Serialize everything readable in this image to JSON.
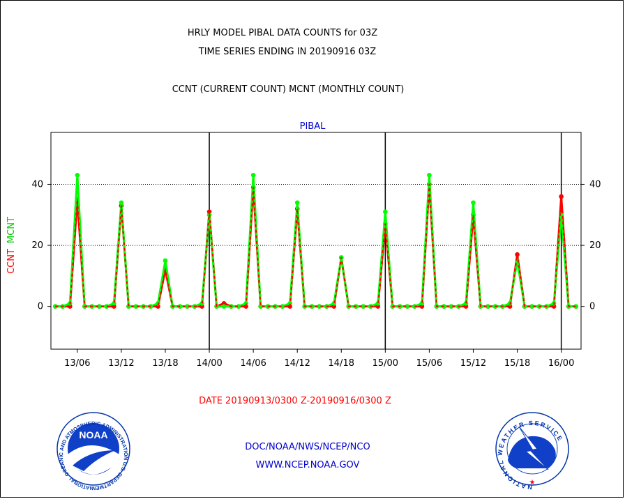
{
  "header": {
    "title_line1": "HRLY MODEL PIBAL DATA COUNTS for 03Z",
    "title_line2": "TIME SERIES ENDING IN 20190916 03Z",
    "subtitle": "CCNT (CURRENT COUNT) MCNT (MONTHLY COUNT)"
  },
  "footer": {
    "date_range": "DATE 20190913/0300 Z-20190916/0300 Z",
    "org": "DOC/NOAA/NWS/NCEP/NCO",
    "url": "WWW.NCEP.NOAA.GOV"
  },
  "logos": {
    "left_label": "NOAA",
    "left_ring_text": "NATIONAL OCEANIC AND ATMOSPHERIC ADMINISTRATION U.S. DEPARTMENT OF COMMERCE",
    "right_ring_text": "NATIONAL WEATHER SERVICE"
  },
  "colors": {
    "ccnt": "#ff0000",
    "mcnt": "#00ff00",
    "panel_title": "#0000cc",
    "footer_text": "#0000cc",
    "date_text": "#ff0000"
  },
  "chart_data": {
    "type": "line",
    "panel_title": "PIBAL",
    "ylabel_parts": [
      "CCNT",
      "MCNT"
    ],
    "ylim": [
      -14,
      57
    ],
    "yticks": [
      0,
      20,
      40
    ],
    "grid_y": [
      20,
      40
    ],
    "x_unit": "hours since 20190913/0000 Z",
    "xlim": [
      -0.6,
      71.7
    ],
    "xticks": [
      {
        "x": 3,
        "label": "13/06"
      },
      {
        "x": 9,
        "label": "13/12"
      },
      {
        "x": 15,
        "label": "13/18"
      },
      {
        "x": 21,
        "label": "14/00"
      },
      {
        "x": 27,
        "label": "14/06"
      },
      {
        "x": 33,
        "label": "14/12"
      },
      {
        "x": 39,
        "label": "14/18"
      },
      {
        "x": 45,
        "label": "15/00"
      },
      {
        "x": 51,
        "label": "15/06"
      },
      {
        "x": 57,
        "label": "15/12"
      },
      {
        "x": 63,
        "label": "15/18"
      },
      {
        "x": 69,
        "label": "16/00"
      }
    ],
    "day_boundaries": [
      21,
      45,
      69
    ],
    "x": [
      0,
      1,
      2,
      3,
      4,
      5,
      6,
      7,
      8,
      9,
      10,
      11,
      12,
      13,
      14,
      15,
      16,
      17,
      18,
      19,
      20,
      21,
      22,
      23,
      24,
      25,
      26,
      27,
      28,
      29,
      30,
      31,
      32,
      33,
      34,
      35,
      36,
      37,
      38,
      39,
      40,
      41,
      42,
      43,
      44,
      45,
      46,
      47,
      48,
      49,
      50,
      51,
      52,
      53,
      54,
      55,
      56,
      57,
      58,
      59,
      60,
      61,
      62,
      63,
      64,
      65,
      66,
      67,
      68,
      69,
      70,
      71
    ],
    "series": [
      {
        "name": "CCNT",
        "color": "#ff0000",
        "values": [
          0,
          0,
          0,
          35,
          0,
          0,
          0,
          0,
          0,
          33,
          0,
          0,
          0,
          0,
          0,
          12,
          0,
          0,
          0,
          0,
          0,
          31,
          0,
          1,
          0,
          0,
          0,
          39,
          0,
          0,
          0,
          0,
          0,
          32,
          0,
          0,
          0,
          0,
          0,
          16,
          0,
          0,
          0,
          0,
          0,
          27,
          0,
          0,
          0,
          0,
          0,
          40,
          0,
          0,
          0,
          0,
          0,
          30,
          0,
          0,
          0,
          0,
          0,
          17,
          0,
          0,
          0,
          0,
          0,
          36,
          0,
          0
        ]
      },
      {
        "name": "MCNT",
        "color": "#00ff00",
        "values": [
          0,
          0,
          1,
          43,
          0,
          0,
          0,
          0,
          1,
          34,
          0,
          0,
          0,
          0,
          1,
          15,
          0,
          0,
          0,
          0,
          1,
          30,
          0,
          0,
          0,
          0,
          1,
          43,
          0,
          0,
          0,
          0,
          1,
          34,
          0,
          0,
          0,
          0,
          1,
          16,
          0,
          0,
          0,
          0,
          1,
          31,
          0,
          0,
          0,
          0,
          1,
          43,
          0,
          0,
          0,
          0,
          1,
          34,
          0,
          0,
          0,
          0,
          1,
          15,
          0,
          0,
          0,
          0,
          1,
          30,
          0,
          0
        ]
      }
    ]
  }
}
